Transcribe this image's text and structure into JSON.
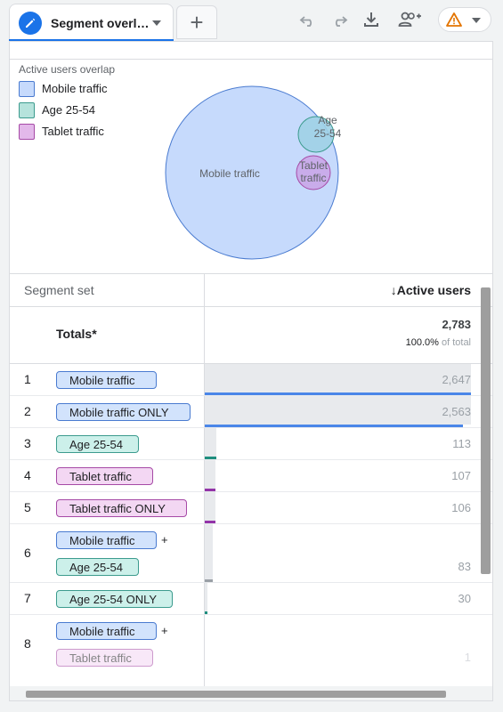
{
  "tab": {
    "title": "Segment overl…"
  },
  "toolbar": {
    "add_tab_label": "+"
  },
  "venn": {
    "title": "Active users overlap",
    "legend": [
      {
        "label": "Mobile traffic",
        "color": "#c6dafc",
        "border": "#4a7bd0"
      },
      {
        "label": "Age 25-54",
        "color": "#b6e3dc",
        "border": "#3c9b8e"
      },
      {
        "label": "Tablet traffic",
        "color": "#e3b8ea",
        "border": "#a64aa6"
      }
    ],
    "circles": [
      {
        "label": "Mobile traffic"
      },
      {
        "label_line1": "Age",
        "label_line2": "25-54"
      },
      {
        "label_line1": "Tablet",
        "label_line2": "traffic"
      }
    ]
  },
  "table": {
    "header_segment": "Segment set",
    "header_metric": "↓Active users",
    "totals_label": "Totals*",
    "totals_value": "2,783",
    "totals_pct_value": "100.0%",
    "totals_pct_suffix": " of total",
    "rows": [
      {
        "num": "1",
        "chips": [
          "Mobile traffic"
        ],
        "value": "2,647"
      },
      {
        "num": "2",
        "chips": [
          "Mobile traffic ONLY"
        ],
        "value": "2,563"
      },
      {
        "num": "3",
        "chips": [
          "Age 25-54"
        ],
        "value": "113"
      },
      {
        "num": "4",
        "chips": [
          "Tablet traffic"
        ],
        "value": "107"
      },
      {
        "num": "5",
        "chips": [
          "Tablet traffic ONLY"
        ],
        "value": "106"
      },
      {
        "num": "6",
        "chips": [
          "Mobile traffic",
          "Age 25-54"
        ],
        "plus": "+",
        "value": "83"
      },
      {
        "num": "7",
        "chips": [
          "Age 25-54 ONLY"
        ],
        "value": "30"
      },
      {
        "num": "8",
        "chips": [
          "Mobile traffic",
          "Tablet traffic"
        ],
        "plus": "+",
        "value": "1"
      }
    ]
  },
  "colors": {
    "accent": "#1a73e8",
    "blue_bar": "#4a86e8",
    "teal_bar": "#1e8e7e",
    "purple_bar": "#9334a8"
  }
}
